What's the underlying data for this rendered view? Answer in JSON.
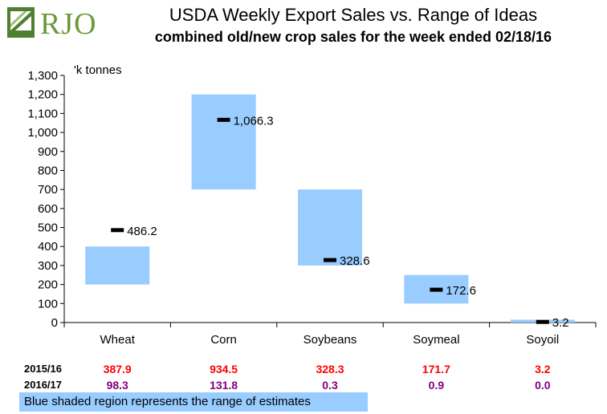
{
  "logo": {
    "text": "RJO"
  },
  "title": "USDA Weekly Export Sales vs. Range of Ideas",
  "subtitle": "combined old/new crop sales for the week ended 02/18/16",
  "chart_data": {
    "type": "bar",
    "unit_label": "'k tonnes",
    "categories": [
      "Wheat",
      "Corn",
      "Soybeans",
      "Soymeal",
      "Soyoil"
    ],
    "ranges": [
      {
        "low": 200,
        "high": 400
      },
      {
        "low": 700,
        "high": 1200
      },
      {
        "low": 300,
        "high": 700
      },
      {
        "low": 100,
        "high": 250
      },
      {
        "low": 0,
        "high": 15
      }
    ],
    "actual": [
      486.2,
      1066.3,
      328.6,
      172.6,
      3.2
    ],
    "actual_labels": [
      "486.2",
      "1,066.3",
      "328.6",
      "172.6",
      "3.2"
    ],
    "ylim": [
      0,
      1300
    ],
    "yticks": [
      0,
      100,
      200,
      300,
      400,
      500,
      600,
      700,
      800,
      900,
      1000,
      1100,
      1200,
      1300
    ],
    "ytick_labels": [
      "0",
      "100",
      "200",
      "300",
      "400",
      "500",
      "600",
      "700",
      "800",
      "900",
      "1,000",
      "1,100",
      "1,200",
      "1,300"
    ],
    "range_color": "#99ccff",
    "marker_color": "#000000"
  },
  "table": {
    "rows": [
      {
        "label": "2015/16",
        "color": "#ff0000",
        "values": [
          "387.9",
          "934.5",
          "328.3",
          "171.7",
          "3.2"
        ]
      },
      {
        "label": "2016/17",
        "color": "#800080",
        "values": [
          "98.3",
          "131.8",
          "0.3",
          "0.9",
          "0.0"
        ]
      }
    ]
  },
  "footnote": "Blue shaded region represents the range of estimates"
}
